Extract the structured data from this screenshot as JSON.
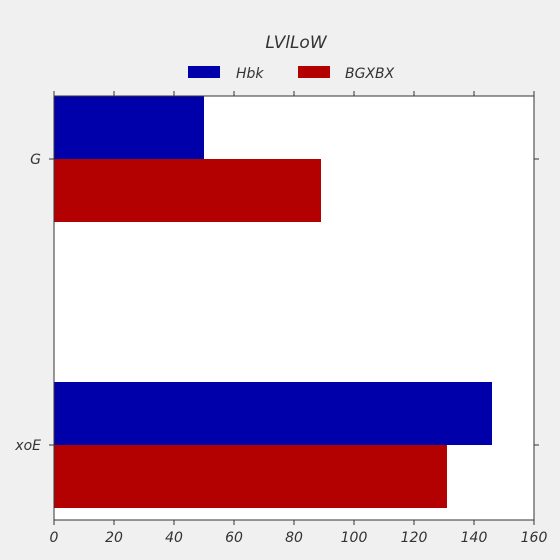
{
  "chart_data": {
    "type": "bar",
    "orientation": "horizontal",
    "title": "LVlLoW",
    "categories": [
      "G",
      "xoE"
    ],
    "series": [
      {
        "name": "Hbk",
        "values": [
          50,
          146
        ],
        "color": "#0000aa"
      },
      {
        "name": "BGXBX",
        "values": [
          89,
          131
        ],
        "color": "#b30000"
      }
    ],
    "xlim": [
      0,
      160
    ],
    "xticks": [
      0,
      20,
      40,
      60,
      80,
      100,
      120,
      140,
      160
    ],
    "xlabel": "",
    "ylabel": "",
    "grid": false,
    "legend": "top-center"
  }
}
